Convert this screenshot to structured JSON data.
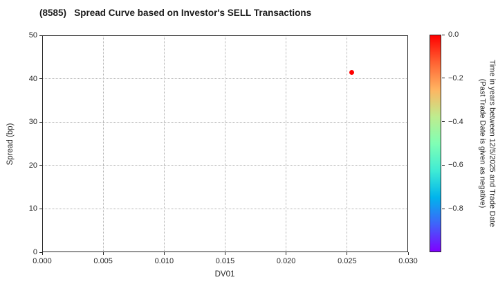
{
  "title": "(8585)   Spread Curve based on Investor's SELL Transactions",
  "chart_data": {
    "type": "scatter",
    "title": "(8585)   Spread Curve based on Investor's SELL Transactions",
    "xlabel": "DV01",
    "ylabel": "Spread (bp)",
    "xlim": [
      0.0,
      0.03
    ],
    "ylim": [
      0,
      50
    ],
    "x_ticks": [
      "0.000",
      "0.005",
      "0.010",
      "0.015",
      "0.020",
      "0.025",
      "0.030"
    ],
    "y_ticks": [
      "0",
      "10",
      "20",
      "30",
      "40",
      "50"
    ],
    "grid": "dotted, on both axes interior ticks",
    "legend": "none",
    "points": [
      {
        "x": 0.0254,
        "y": 41.4,
        "time_years": 0.0,
        "color": "#ff0000"
      }
    ],
    "colorbar": {
      "label_line1": "Time in years between 12/5/2025 and Trade Date",
      "label_line2": "(Past Trade Date is given as negative)",
      "range_top": 0.0,
      "range_bottom": -1.0,
      "ticks": [
        "0.0",
        "−0.2",
        "−0.4",
        "−0.6",
        "−0.8"
      ],
      "colormap_name": "rainbow (red = 0.0 at top, violet = −1.0 at bottom)",
      "gradient_top_to_bottom": [
        "#ff0000",
        "#ff6232",
        "#ffb461",
        "#bfec8e",
        "#80ffb4",
        "#40ecd4",
        "#00b4ec",
        "#4062fa",
        "#8000ff"
      ]
    },
    "colors": {
      "frame": "#262626",
      "gridline": "#b0b0b0",
      "background": "#ffffff",
      "point": "#ff0000"
    }
  }
}
